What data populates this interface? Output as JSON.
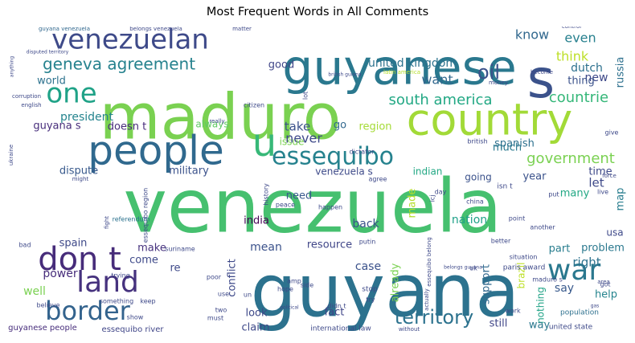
{
  "chart_data": {
    "type": "wordcloud",
    "title": "Most Frequent Words in All Comments",
    "words": [
      {
        "text": "venezuela",
        "size": 92,
        "color": "#46c06f"
      },
      {
        "text": "guyana",
        "size": 90,
        "color": "#2c728e"
      },
      {
        "text": "maduro",
        "size": 78,
        "color": "#7ad151"
      },
      {
        "text": "guyanese",
        "size": 60,
        "color": "#2a788e"
      },
      {
        "text": "country",
        "size": 54,
        "color": "#a2da37"
      },
      {
        "text": "s",
        "size": 66,
        "color": "#3b528b"
      },
      {
        "text": "people",
        "size": 50,
        "color": "#30698e"
      },
      {
        "text": "u",
        "size": 48,
        "color": "#37b878"
      },
      {
        "text": "venezuelan",
        "size": 34,
        "color": "#3e4a89"
      },
      {
        "text": "one",
        "size": 34,
        "color": "#1fa287"
      },
      {
        "text": "don t",
        "size": 40,
        "color": "#472c7a"
      },
      {
        "text": "land",
        "size": 36,
        "color": "#46327e"
      },
      {
        "text": "border",
        "size": 32,
        "color": "#33638d"
      },
      {
        "text": "war",
        "size": 36,
        "color": "#2a788e"
      },
      {
        "text": "essequibo",
        "size": 30,
        "color": "#26828e"
      },
      {
        "text": "territory",
        "size": 24,
        "color": "#2c728e"
      },
      {
        "text": "oil",
        "size": 24,
        "color": "#3b528b"
      },
      {
        "text": "geneva agreement",
        "size": 20,
        "color": "#26828e"
      },
      {
        "text": "south america",
        "size": 18,
        "color": "#22a884"
      },
      {
        "text": "government",
        "size": 18,
        "color": "#7ad151"
      },
      {
        "text": "countrie",
        "size": 18,
        "color": "#35b779"
      },
      {
        "text": "know",
        "size": 16,
        "color": "#31688e"
      },
      {
        "text": "even",
        "size": 16,
        "color": "#27808e"
      },
      {
        "text": "think",
        "size": 16,
        "color": "#bddf26"
      },
      {
        "text": "new",
        "size": 14,
        "color": "#3e4989"
      },
      {
        "text": "want",
        "size": 16,
        "color": "#31688e"
      },
      {
        "text": "president",
        "size": 14,
        "color": "#25848e"
      },
      {
        "text": "united kingdom",
        "size": 14,
        "color": "#2c728e"
      },
      {
        "text": "dutch",
        "size": 14,
        "color": "#2d708e"
      },
      {
        "text": "thing",
        "size": 13,
        "color": "#3b528b"
      },
      {
        "text": "russia",
        "size": 13,
        "color": "#2d708e"
      },
      {
        "text": "world",
        "size": 13,
        "color": "#2c728e"
      },
      {
        "text": "good",
        "size": 13,
        "color": "#404688"
      },
      {
        "text": "guyana s",
        "size": 13,
        "color": "#472d7b"
      },
      {
        "text": "doesn t",
        "size": 13,
        "color": "#472c7a"
      },
      {
        "text": "never",
        "size": 16,
        "color": "#3e4989"
      },
      {
        "text": "take",
        "size": 15,
        "color": "#3b528b"
      },
      {
        "text": "go",
        "size": 13,
        "color": "#31688e"
      },
      {
        "text": "region",
        "size": 13,
        "color": "#a5db36"
      },
      {
        "text": "always",
        "size": 12,
        "color": "#5ec962"
      },
      {
        "text": "issue",
        "size": 12,
        "color": "#7ad151"
      },
      {
        "text": "spanish",
        "size": 13,
        "color": "#2d708e"
      },
      {
        "text": "much",
        "size": 13,
        "color": "#2a788e"
      },
      {
        "text": "dispute",
        "size": 13,
        "color": "#38598c"
      },
      {
        "text": "military",
        "size": 13,
        "color": "#3b528b"
      },
      {
        "text": "venezuela s",
        "size": 12,
        "color": "#3e4a89"
      },
      {
        "text": "indian",
        "size": 12,
        "color": "#22a884"
      },
      {
        "text": "going",
        "size": 12,
        "color": "#3b528b"
      },
      {
        "text": "year",
        "size": 13,
        "color": "#3b528b"
      },
      {
        "text": "time",
        "size": 13,
        "color": "#3e4989"
      },
      {
        "text": "let",
        "size": 15,
        "color": "#3e4989"
      },
      {
        "text": "map",
        "size": 13,
        "color": "#287d8e"
      },
      {
        "text": "many",
        "size": 13,
        "color": "#22a884"
      },
      {
        "text": "need",
        "size": 13,
        "color": "#38598c"
      },
      {
        "text": "india",
        "size": 13,
        "color": "#440154"
      },
      {
        "text": "back",
        "size": 14,
        "color": "#3b528b"
      },
      {
        "text": "nation",
        "size": 14,
        "color": "#1fa188"
      },
      {
        "text": "made",
        "size": 13,
        "color": "#b5de2b"
      },
      {
        "text": "spain",
        "size": 13,
        "color": "#3e4989"
      },
      {
        "text": "make",
        "size": 13,
        "color": "#46327e"
      },
      {
        "text": "mean",
        "size": 14,
        "color": "#3b528b"
      },
      {
        "text": "resource",
        "size": 13,
        "color": "#404688"
      },
      {
        "text": "come",
        "size": 13,
        "color": "#3e4989"
      },
      {
        "text": "re",
        "size": 13,
        "color": "#3e4989"
      },
      {
        "text": "part",
        "size": 13,
        "color": "#287d8e"
      },
      {
        "text": "problem",
        "size": 13,
        "color": "#2a788e"
      },
      {
        "text": "usa",
        "size": 12,
        "color": "#3e4989"
      },
      {
        "text": "right",
        "size": 15,
        "color": "#2c728e"
      },
      {
        "text": "power",
        "size": 14,
        "color": "#472d7b"
      },
      {
        "text": "conflict",
        "size": 13,
        "color": "#3e4989"
      },
      {
        "text": "case",
        "size": 14,
        "color": "#3b528b"
      },
      {
        "text": "say",
        "size": 14,
        "color": "#38598c"
      },
      {
        "text": "help",
        "size": 13,
        "color": "#25848e"
      },
      {
        "text": "well",
        "size": 14,
        "color": "#7ad151"
      },
      {
        "text": "look",
        "size": 13,
        "color": "#3e4989"
      },
      {
        "text": "fact",
        "size": 13,
        "color": "#404688"
      },
      {
        "text": "already",
        "size": 13,
        "color": "#7ad151"
      },
      {
        "text": "support",
        "size": 13,
        "color": "#31688e"
      },
      {
        "text": "brazil",
        "size": 12,
        "color": "#bddf26"
      },
      {
        "text": "nothing",
        "size": 12,
        "color": "#20a386"
      },
      {
        "text": "claim",
        "size": 13,
        "color": "#3e4989"
      },
      {
        "text": "still",
        "size": 13,
        "color": "#404688"
      },
      {
        "text": "way",
        "size": 13,
        "color": "#2a788e"
      },
      {
        "text": "guyanese people",
        "size": 10,
        "color": "#472d7b"
      },
      {
        "text": "essequibo river",
        "size": 10,
        "color": "#404688"
      },
      {
        "text": "international law",
        "size": 9,
        "color": "#3e4989"
      },
      {
        "text": "united state",
        "size": 9,
        "color": "#3e4989"
      },
      {
        "text": "paris award",
        "size": 9,
        "color": "#3e4989"
      },
      {
        "text": "population",
        "size": 9,
        "color": "#2d708e"
      },
      {
        "text": "essequibo region",
        "size": 8,
        "color": "#3e4989"
      },
      {
        "text": "essequibo belong",
        "size": 7,
        "color": "#3e4989"
      },
      {
        "text": "referendum",
        "size": 8,
        "color": "#2c728e"
      },
      {
        "text": "guyana venezuela",
        "size": 7,
        "color": "#31688e"
      },
      {
        "text": "belongs venezuela",
        "size": 7,
        "color": "#3e4989"
      },
      {
        "text": "matter",
        "size": 7,
        "color": "#3e4989"
      },
      {
        "text": "control",
        "size": 7,
        "color": "#3e4989"
      },
      {
        "text": "disputed territory",
        "size": 6,
        "color": "#3e4989"
      },
      {
        "text": "latin america",
        "size": 7,
        "color": "#b5de2b"
      },
      {
        "text": "british guiana",
        "size": 6,
        "color": "#3e4989"
      },
      {
        "text": "money",
        "size": 7,
        "color": "#3e4989"
      },
      {
        "text": "become",
        "size": 7,
        "color": "#3e4989"
      },
      {
        "text": "citizen",
        "size": 8,
        "color": "#3e4989"
      },
      {
        "text": "british",
        "size": 8,
        "color": "#3e4989"
      },
      {
        "text": "dictator",
        "size": 8,
        "color": "#3e4989"
      },
      {
        "text": "history",
        "size": 8,
        "color": "#3e4989"
      },
      {
        "text": "happen",
        "size": 8,
        "color": "#3e4989"
      },
      {
        "text": "peace",
        "size": 8,
        "color": "#3e4989"
      },
      {
        "text": "china",
        "size": 8,
        "color": "#3e4989"
      },
      {
        "text": "putin",
        "size": 8,
        "color": "#3e4989"
      },
      {
        "text": "suriname",
        "size": 8,
        "color": "#3e4989"
      },
      {
        "text": "agree",
        "size": 8,
        "color": "#3e4989"
      },
      {
        "text": "icj",
        "size": 8,
        "color": "#3e4989"
      },
      {
        "text": "isn t",
        "size": 9,
        "color": "#3e4989"
      },
      {
        "text": "hope",
        "size": 8,
        "color": "#3e4989"
      },
      {
        "text": "stop",
        "size": 9,
        "color": "#3e4989"
      },
      {
        "text": "try",
        "size": 8,
        "color": "#3e4989"
      },
      {
        "text": "didn t",
        "size": 8,
        "color": "#3e4989"
      },
      {
        "text": "use",
        "size": 8,
        "color": "#3e4989"
      },
      {
        "text": "two",
        "size": 8,
        "color": "#3e4989"
      },
      {
        "text": "must",
        "size": 8,
        "color": "#3e4989"
      },
      {
        "text": "show",
        "size": 8,
        "color": "#3e4989"
      },
      {
        "text": "bad",
        "size": 8,
        "color": "#3e4989"
      },
      {
        "text": "believe",
        "size": 8,
        "color": "#3e4989"
      },
      {
        "text": "something",
        "size": 8,
        "color": "#3e4989"
      },
      {
        "text": "keep",
        "size": 8,
        "color": "#3e4989"
      },
      {
        "text": "trying",
        "size": 8,
        "color": "#3e4989"
      },
      {
        "text": "poor",
        "size": 8,
        "color": "#3e4989"
      },
      {
        "text": "un",
        "size": 8,
        "color": "#3e4989"
      },
      {
        "text": "amp",
        "size": 8,
        "color": "#3e4989"
      },
      {
        "text": "side",
        "size": 8,
        "color": "#3e4989"
      },
      {
        "text": "uk",
        "size": 8,
        "color": "#3e4989"
      },
      {
        "text": "better",
        "size": 8,
        "color": "#3e4989"
      },
      {
        "text": "situation",
        "size": 8,
        "color": "#3e4989"
      },
      {
        "text": "point",
        "size": 8,
        "color": "#3e4989"
      },
      {
        "text": "another",
        "size": 8,
        "color": "#3e4989"
      },
      {
        "text": "live",
        "size": 8,
        "color": "#3e4989"
      },
      {
        "text": "work",
        "size": 8,
        "color": "#3e4989"
      },
      {
        "text": "got",
        "size": 8,
        "color": "#3e4989"
      },
      {
        "text": "day",
        "size": 8,
        "color": "#3e4989"
      },
      {
        "text": "put",
        "size": 8,
        "color": "#3e4989"
      },
      {
        "text": "give",
        "size": 8,
        "color": "#3e4989"
      },
      {
        "text": "force",
        "size": 7,
        "color": "#3e4989"
      },
      {
        "text": "english",
        "size": 7,
        "color": "#3e4989"
      },
      {
        "text": "corruption",
        "size": 7,
        "color": "#3e4989"
      },
      {
        "text": "anything",
        "size": 6,
        "color": "#3e4989"
      },
      {
        "text": "ukraine",
        "size": 7,
        "color": "#3e4989"
      },
      {
        "text": "might",
        "size": 7,
        "color": "#3e4989"
      },
      {
        "text": "fight",
        "size": 7,
        "color": "#3e4989"
      },
      {
        "text": "without",
        "size": 7,
        "color": "#3e4989"
      },
      {
        "text": "area",
        "size": 7,
        "color": "#3e4989"
      },
      {
        "text": "actually",
        "size": 7,
        "color": "#3e4989"
      },
      {
        "text": "political",
        "size": 6,
        "color": "#3e4989"
      },
      {
        "text": "belongs guyana",
        "size": 6,
        "color": "#3e4989"
      },
      {
        "text": "maduro s",
        "size": 8,
        "color": "#3e4989"
      },
      {
        "text": "lot",
        "size": 8,
        "color": "#3e4989"
      },
      {
        "text": "really",
        "size": 7,
        "color": "#3e4989"
      },
      {
        "text": "gas",
        "size": 6,
        "color": "#3e4989"
      }
    ]
  }
}
